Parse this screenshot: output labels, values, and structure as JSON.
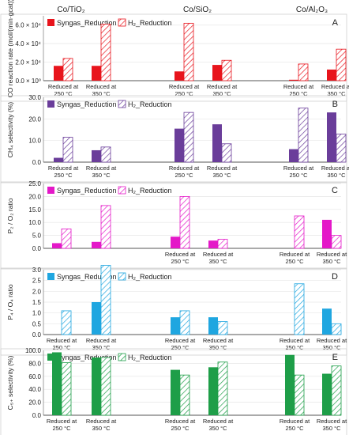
{
  "groups": [
    "Co/TiO₂",
    "Co/SiO₂",
    "Co/Al₂O₃"
  ],
  "colors": {
    "A": "#e8141c",
    "B": "#6a3d9a",
    "C": "#e418c8",
    "D": "#1fa6e0",
    "E": "#1e9e48"
  },
  "chart_data": [
    {
      "id": "A",
      "type": "bar",
      "panel_label": "A",
      "ylabel": "CO reaction rate (mol/(min·gcat))",
      "ylim": [
        0,
        70000
      ],
      "yticks": [
        0,
        20000,
        40000,
        60000
      ],
      "ytick_labels": [
        "0.0 × 10⁰",
        "2.0 × 10⁴",
        "4.0 × 10⁴",
        "6.0 × 10⁴"
      ],
      "categories": [
        "Reduced at 250 °C",
        "Reduced at 350 °C",
        "Reduced at 250 °C",
        "Reduced at 350 °C",
        "Reduced at 250 °C",
        "Reduced at 350 °C"
      ],
      "series": [
        {
          "name": "Syngas_Reduction",
          "values": [
            16000,
            16000,
            10000,
            17000,
            1000,
            12000
          ]
        },
        {
          "name": "H₂_Reduction",
          "values": [
            24000,
            61000,
            62000,
            22000,
            18000,
            34000
          ]
        }
      ]
    },
    {
      "id": "B",
      "type": "bar",
      "panel_label": "B",
      "ylabel": "CH₄ selectivity (%)",
      "ylim": [
        0,
        30
      ],
      "yticks": [
        0,
        10,
        20,
        30
      ],
      "ytick_labels": [
        "0.0",
        "10.0",
        "20.0",
        "30.0"
      ],
      "categories": [
        "Reduced at 250 °C",
        "Reduced at 350 °C",
        "Reduced at 250 °C",
        "Reduced at 350 °C",
        "Reduced at 250 °C",
        "Reduced at 350 °C"
      ],
      "series": [
        {
          "name": "Syngas_Reduction",
          "values": [
            2.0,
            5.5,
            15.5,
            17.5,
            6.0,
            23.0
          ]
        },
        {
          "name": "H₂_Reduction",
          "values": [
            11.5,
            7.0,
            23.0,
            8.5,
            25.0,
            13.0
          ]
        }
      ]
    },
    {
      "id": "C",
      "type": "bar",
      "panel_label": "C",
      "ylabel": "P₂ / O₂ ratio",
      "ylim": [
        0,
        25
      ],
      "yticks": [
        0,
        5,
        10,
        15,
        20,
        25
      ],
      "ytick_labels": [
        "0.0",
        "5.0",
        "10.0",
        "15.0",
        "20.0",
        "25.0"
      ],
      "categories": [
        "",
        "",
        "Reduced at 250 °C",
        "Reduced at 350 °C",
        "Reduced at 250 °C",
        "Reduced at 350 °C"
      ],
      "series": [
        {
          "name": "Syngas_Reduction",
          "values": [
            2.0,
            2.5,
            4.5,
            3.0,
            0,
            11.0
          ]
        },
        {
          "name": "H₂_Reduction",
          "values": [
            7.5,
            16.5,
            20.0,
            3.5,
            12.5,
            5.0
          ]
        }
      ]
    },
    {
      "id": "D",
      "type": "bar",
      "panel_label": "D",
      "ylabel": "P₄ / O₄ ratio",
      "ylim": [
        0,
        3.0
      ],
      "yticks": [
        0,
        0.5,
        1.0,
        1.5,
        2.0,
        2.5,
        3.0
      ],
      "ytick_labels": [
        "0.0",
        "0.5",
        "1.0",
        "1.5",
        "2.0",
        "2.5",
        "3.0"
      ],
      "categories": [
        "Reduced at 250 °C",
        "Reduced at 350 °C",
        "Reduced at 250 °C",
        "Reduced at 350 °C",
        "Reduced at 250 °C",
        "Reduced at 350 °C"
      ],
      "series": [
        {
          "name": "Syngas_Reduction",
          "values": [
            0,
            1.5,
            0.8,
            0.8,
            0,
            1.2
          ]
        },
        {
          "name": "H₂_Reduction",
          "values": [
            1.1,
            3.2,
            1.1,
            0.6,
            2.35,
            0.5
          ]
        }
      ]
    },
    {
      "id": "E",
      "type": "bar",
      "panel_label": "E",
      "ylabel": "C₅₊ selectivity (%)",
      "ylim": [
        0,
        100
      ],
      "yticks": [
        0,
        20,
        40,
        60,
        80,
        100
      ],
      "ytick_labels": [
        "0.0",
        "20.0",
        "40.0",
        "60.0",
        "80.0",
        "100.0"
      ],
      "categories": [
        "Reduced at 250 °C",
        "Reduced at 350 °C",
        "Reduced at 250 °C",
        "Reduced at 350 °C",
        "Reduced at 250 °C",
        "Reduced at 350 °C"
      ],
      "series": [
        {
          "name": "Syngas_Reduction",
          "values": [
            97,
            89,
            70,
            74,
            93,
            64
          ]
        },
        {
          "name": "H₂_Reduction",
          "values": [
            81,
            89,
            62,
            82,
            62,
            76
          ]
        }
      ]
    }
  ]
}
